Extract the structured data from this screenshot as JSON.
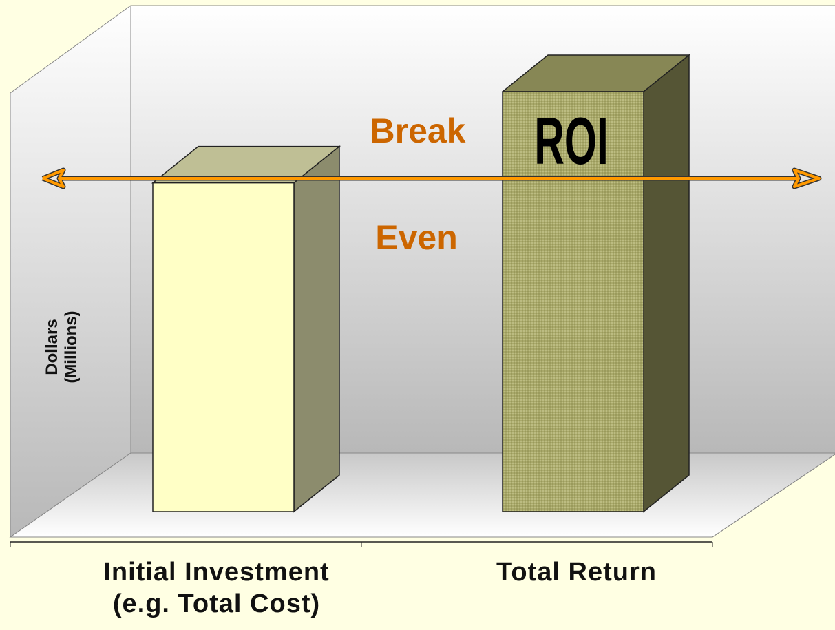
{
  "chart_data": {
    "type": "bar3d",
    "y_label": "Dollars\n(Millions)",
    "categories": [
      "Initial Investment\n(e.g. Total Cost)",
      "Total Return"
    ],
    "values": [
      72,
      92
    ],
    "colors": [
      "#ffffc6",
      "#a9a96a"
    ],
    "ylim": [
      0,
      100
    ],
    "break_even": {
      "value": 73,
      "labels": [
        "Break",
        "Even"
      ]
    },
    "annotation": "ROI"
  }
}
